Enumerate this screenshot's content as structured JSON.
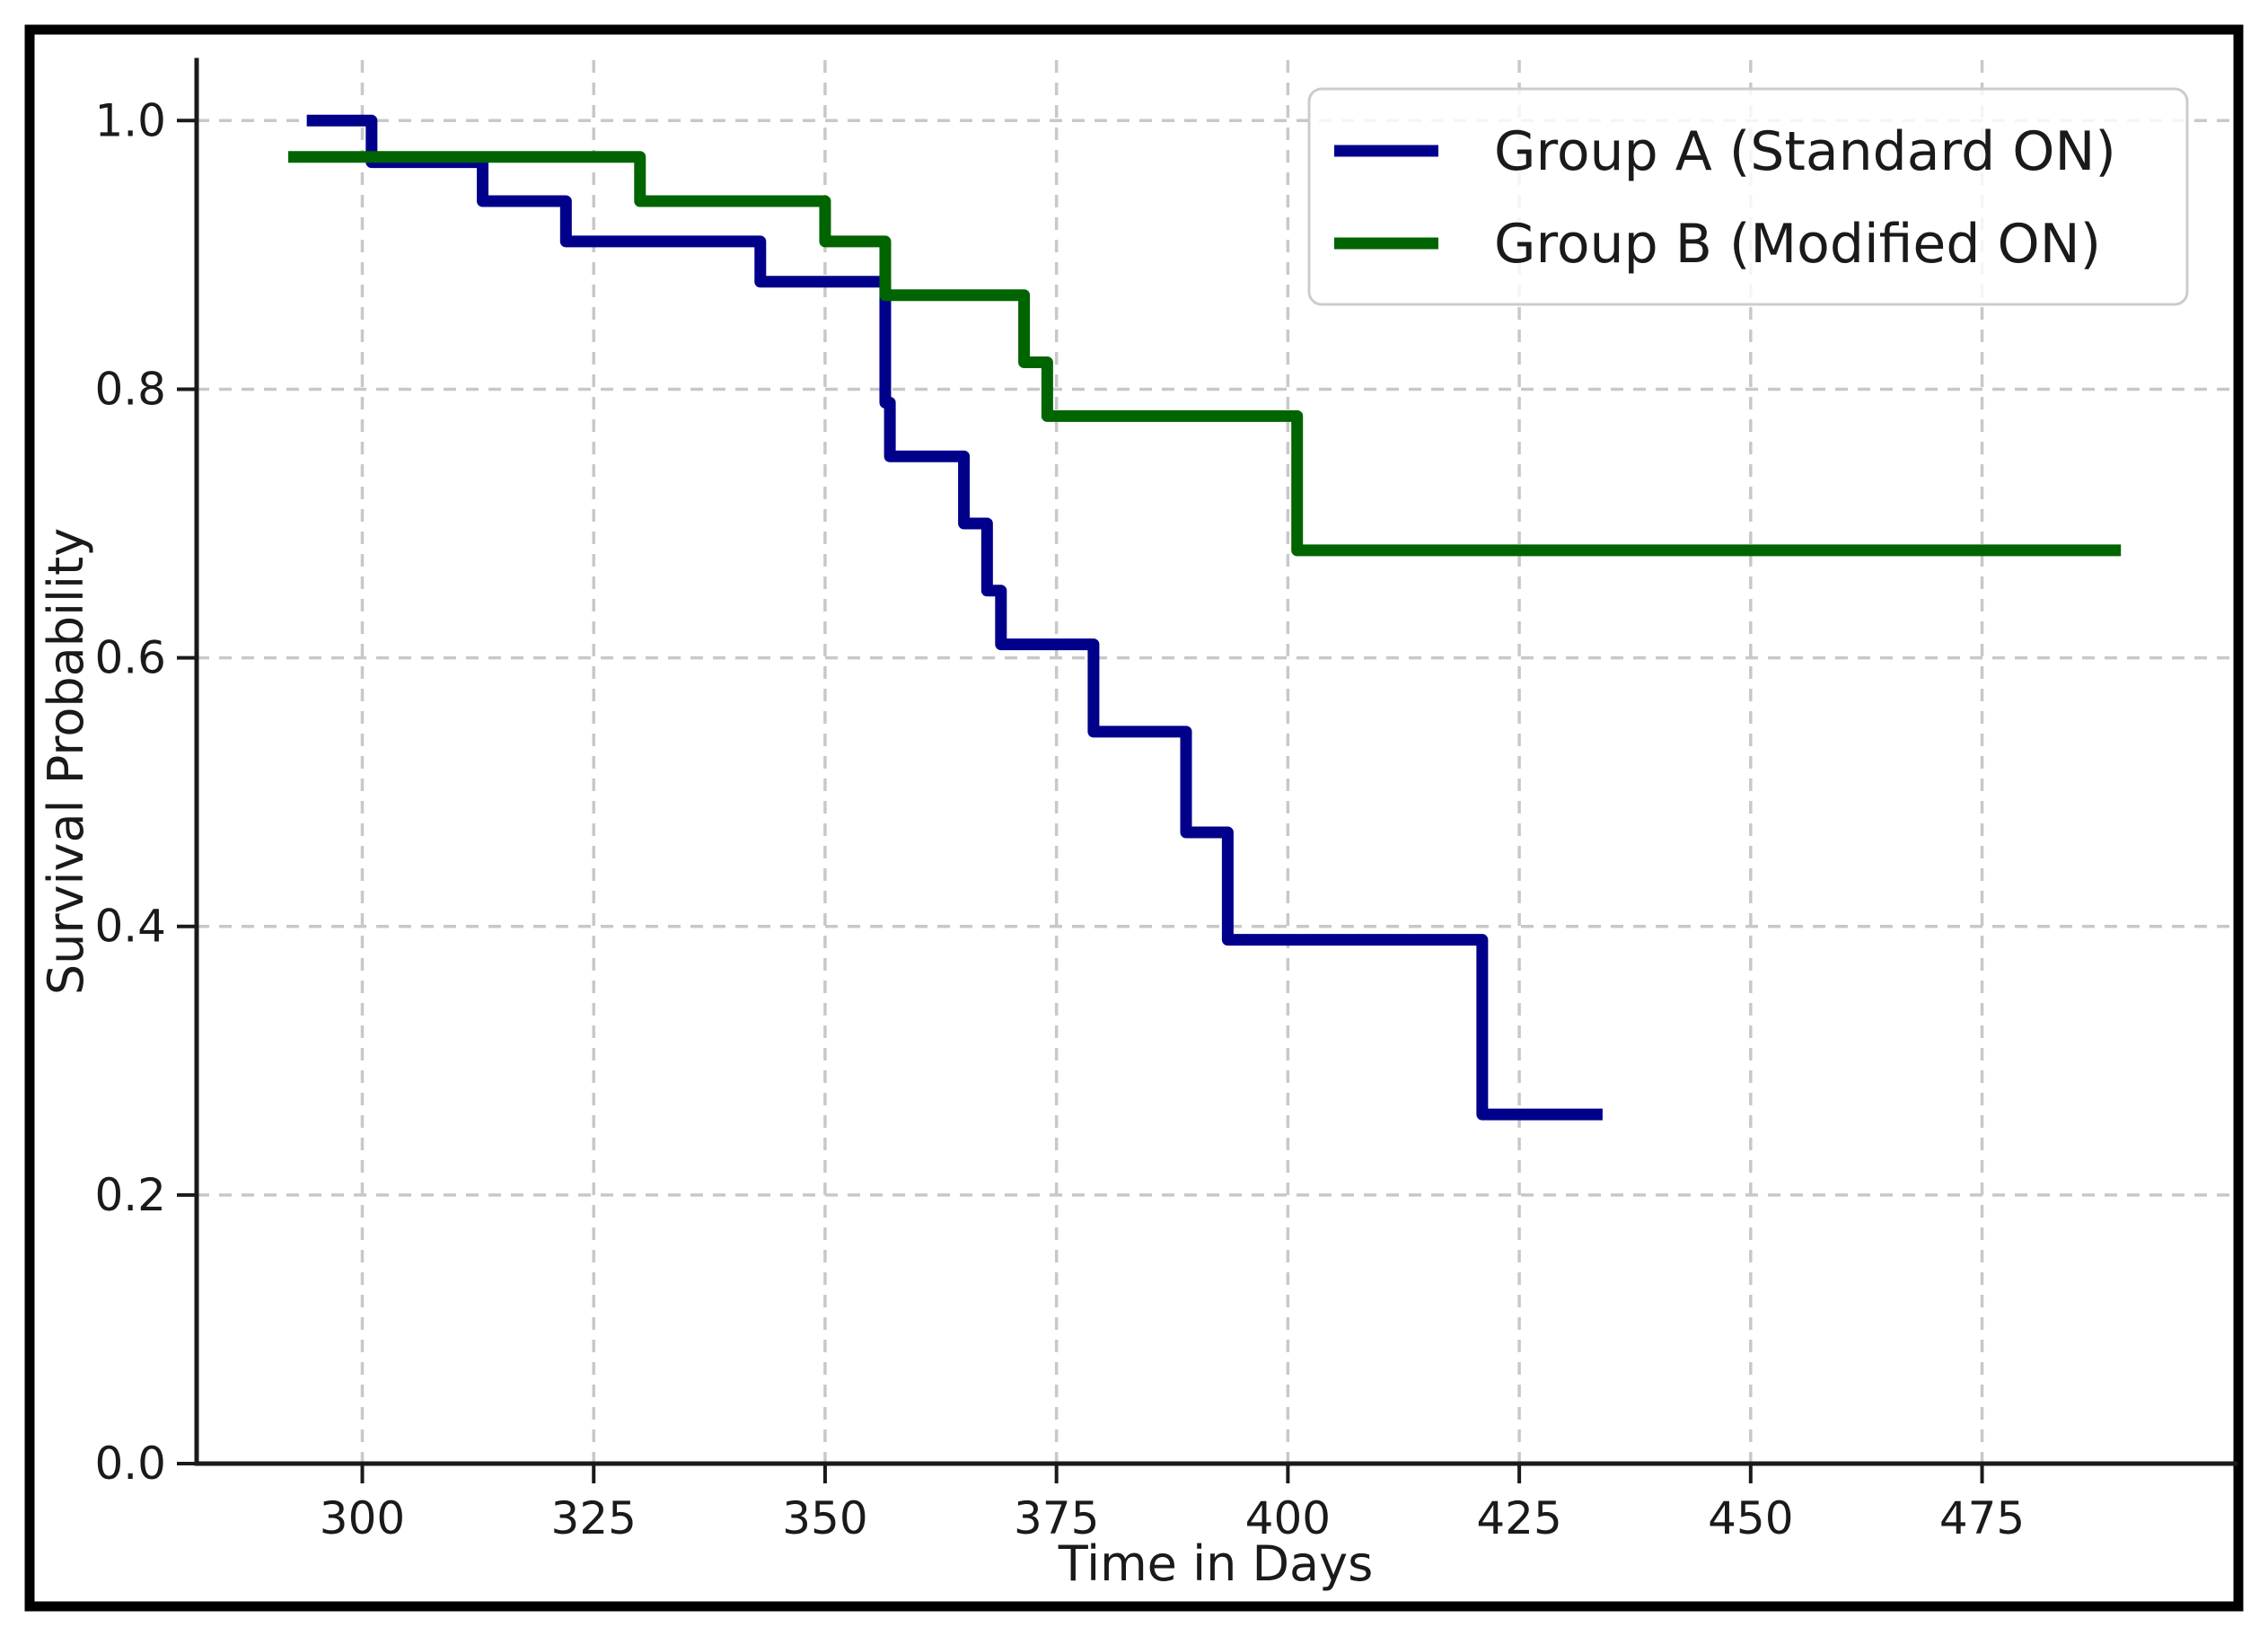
{
  "figure": {
    "background": "#ffffff",
    "border_color": "#000000"
  },
  "chart_data": {
    "type": "line",
    "subtype": "kaplan-meier-step",
    "title": "",
    "xlabel": "Time in Days",
    "ylabel": "Survival Probability",
    "xlim": [
      282.1,
      502.4
    ],
    "ylim": [
      0,
      1.045
    ],
    "x_ticks": [
      300,
      325,
      350,
      375,
      400,
      425,
      450,
      475
    ],
    "x_tick_labels": [
      "300",
      "325",
      "350",
      "375",
      "400",
      "425",
      "450",
      "475"
    ],
    "y_ticks": [
      0.0,
      0.2,
      0.4,
      0.6,
      0.8,
      1.0
    ],
    "y_tick_labels": [
      "0.0",
      "0.2",
      "0.4",
      "0.6",
      "0.8",
      "1.0"
    ],
    "grid": true,
    "grid_color": "#c8c8c8",
    "axis_color": "#1a1a1a",
    "text_color": "#1a1a1a",
    "legend_position": "upper right",
    "series": [
      {
        "name": "Group A (Standard ON)",
        "color": "#00008B",
        "steps": [
          [
            294,
            1.0
          ],
          [
            301,
            0.969
          ],
          [
            313,
            0.94
          ],
          [
            322,
            0.91
          ],
          [
            343,
            0.88
          ],
          [
            356.5,
            0.79
          ],
          [
            357,
            0.75
          ],
          [
            365,
            0.7
          ],
          [
            367.5,
            0.65
          ],
          [
            369,
            0.61
          ],
          [
            379,
            0.545
          ],
          [
            389,
            0.47
          ],
          [
            393.5,
            0.39
          ],
          [
            421,
            0.26
          ]
        ],
        "end_x": 434
      },
      {
        "name": "Group B (Modified ON)",
        "color": "#006400",
        "steps": [
          [
            292,
            0.973
          ],
          [
            330,
            0.94
          ],
          [
            350,
            0.91
          ],
          [
            356.5,
            0.87
          ],
          [
            371.5,
            0.82
          ],
          [
            374,
            0.78
          ],
          [
            401,
            0.68
          ]
        ],
        "end_x": 490
      }
    ]
  }
}
